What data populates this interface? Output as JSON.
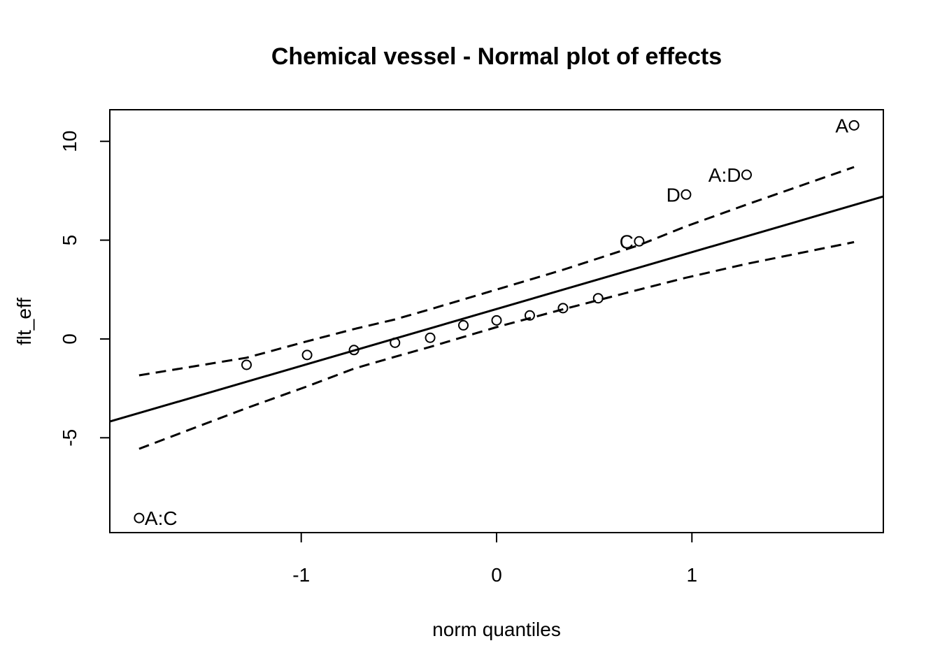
{
  "chart_data": {
    "type": "scatter",
    "title": "Chemical vessel - Normal plot of effects",
    "xlabel": "norm quantiles",
    "ylabel": "flt_eff",
    "xlim": [
      -1.98,
      1.98
    ],
    "ylim": [
      -9.8,
      11.6
    ],
    "x_ticks": [
      -1,
      0,
      1
    ],
    "y_ticks": [
      -5,
      0,
      5,
      10
    ],
    "points": [
      {
        "x": -1.83,
        "y": -9.06,
        "label": "A:C"
      },
      {
        "x": -1.28,
        "y": -1.31,
        "label": ""
      },
      {
        "x": -0.97,
        "y": -0.81,
        "label": ""
      },
      {
        "x": -0.73,
        "y": -0.56,
        "label": ""
      },
      {
        "x": -0.52,
        "y": -0.19,
        "label": ""
      },
      {
        "x": -0.34,
        "y": 0.06,
        "label": ""
      },
      {
        "x": -0.17,
        "y": 0.69,
        "label": ""
      },
      {
        "x": 0.0,
        "y": 0.94,
        "label": ""
      },
      {
        "x": 0.17,
        "y": 1.19,
        "label": ""
      },
      {
        "x": 0.34,
        "y": 1.56,
        "label": ""
      },
      {
        "x": 0.52,
        "y": 2.06,
        "label": ""
      },
      {
        "x": 0.73,
        "y": 4.94,
        "label": "C"
      },
      {
        "x": 0.97,
        "y": 7.31,
        "label": "D"
      },
      {
        "x": 1.28,
        "y": 8.31,
        "label": "A:D"
      },
      {
        "x": 1.83,
        "y": 10.81,
        "label": "A"
      }
    ],
    "reference_line": {
      "type": "solid",
      "points": [
        [
          -1.98,
          -4.18
        ],
        [
          1.98,
          7.21
        ]
      ]
    },
    "confidence_bands": {
      "type": "dashed",
      "upper": [
        [
          -1.83,
          -1.84
        ],
        [
          -1.28,
          -0.95
        ],
        [
          -0.97,
          -0.12
        ],
        [
          -0.73,
          0.5
        ],
        [
          -0.52,
          0.99
        ],
        [
          -0.34,
          1.5
        ],
        [
          0.0,
          2.5
        ],
        [
          0.34,
          3.5
        ],
        [
          0.73,
          4.75
        ],
        [
          0.97,
          5.7
        ],
        [
          1.28,
          6.8
        ],
        [
          1.83,
          8.7
        ]
      ],
      "lower": [
        [
          -1.83,
          -5.56
        ],
        [
          -1.28,
          -3.5
        ],
        [
          -0.97,
          -2.4
        ],
        [
          -0.73,
          -1.5
        ],
        [
          -0.52,
          -0.9
        ],
        [
          -0.34,
          -0.4
        ],
        [
          0.0,
          0.6
        ],
        [
          0.34,
          1.5
        ],
        [
          0.73,
          2.5
        ],
        [
          0.97,
          3.1
        ],
        [
          1.28,
          3.8
        ],
        [
          1.83,
          4.9
        ]
      ]
    },
    "grid": false,
    "legend": "none"
  }
}
